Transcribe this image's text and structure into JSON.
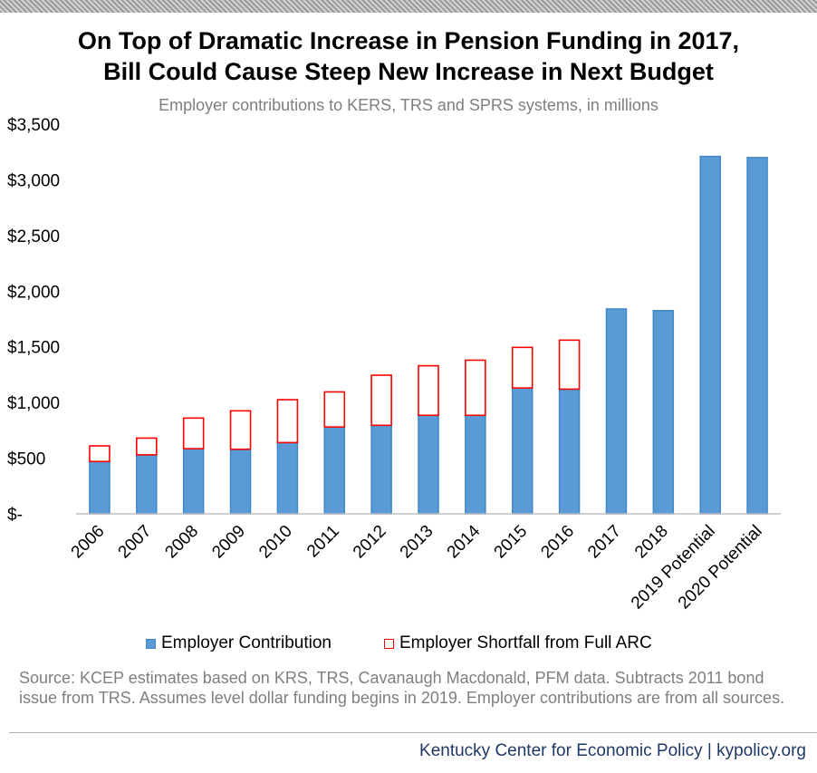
{
  "title_line1": "On Top of Dramatic Increase in Pension Funding in 2017,",
  "title_line2": "Bill Could Cause Steep New Increase in Next Budget",
  "subtitle": "Employer contributions to KERS, TRS and SPRS systems, in millions",
  "legend": {
    "contribution": "Employer Contribution",
    "shortfall": "Employer Shortfall from Full ARC"
  },
  "source": "Source: KCEP estimates based on KRS, TRS, Cavanaugh Macdonald, PFM data. Subtracts 2011 bond issue from TRS. Assumes level dollar funding begins in 2019. Employer contributions are from all sources.",
  "footer": "Kentucky Center for Economic Policy | kypolicy.org",
  "colors": {
    "contribution_fill": "#5b9bd5",
    "contribution_edge": "#3f87c9",
    "shortfall_edge": "#ff0000",
    "footer_text": "#1f3864"
  },
  "chart_data": {
    "type": "bar",
    "stacked": true,
    "categories": [
      "2006",
      "2007",
      "2008",
      "2009",
      "2010",
      "2011",
      "2012",
      "2013",
      "2014",
      "2015",
      "2016",
      "2017",
      "2018",
      "2019 Potential",
      "2020 Potential"
    ],
    "series": [
      {
        "name": "Employer Contribution",
        "values": [
          470,
          530,
          585,
          580,
          640,
          780,
          795,
          885,
          885,
          1130,
          1120,
          1840,
          1825,
          3210,
          3200
        ]
      },
      {
        "name": "Employer Shortfall from Full ARC",
        "values": [
          140,
          150,
          275,
          345,
          385,
          315,
          450,
          445,
          495,
          365,
          440,
          0,
          0,
          0,
          0
        ]
      }
    ],
    "ylim": [
      0,
      3500
    ],
    "yticks": [
      0,
      500,
      1000,
      1500,
      2000,
      2500,
      3000,
      3500
    ],
    "ytick_labels": [
      "$-",
      "$500",
      "$1,000",
      "$1,500",
      "$2,000",
      "$2,500",
      "$3,000",
      "$3,500"
    ],
    "grid": false,
    "legend_position": "bottom"
  }
}
